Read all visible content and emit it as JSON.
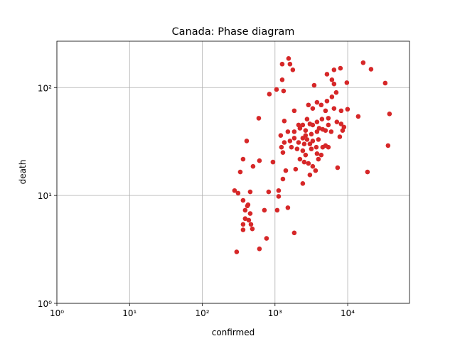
{
  "chart_data": {
    "type": "scatter",
    "title": "Canada: Phase diagram",
    "xlabel": "confirmed",
    "ylabel": "death",
    "x": [
      1538,
      1256,
      1607,
      1758,
      1256,
      837,
      1049,
      1313,
      3459,
      5188,
      6486,
      7943,
      9727,
      16330,
      20940,
      32810,
      6067,
      6486,
      6950,
      6067,
      5188,
      4325,
      3784,
      2884,
      3304,
      4955,
      6486,
      8128,
      9954,
      13960,
      37580,
      5420,
      4426,
      3784,
      3020,
      2410,
      2109,
      2761,
      1841,
      1343,
      1199,
      1503,
      1841,
      2203,
      2636,
      3304,
      4046,
      4955,
      5420,
      7096,
      8128,
      8892,
      8511,
      7780,
      5929,
      4529,
      3784,
      3162,
      2636,
      2410,
      2761,
      3304,
      3954,
      4955,
      5420,
      4529,
      3698,
      3020,
      2523,
      2109,
      1841,
      1607,
      1343,
      1227,
      1285,
      1683,
      2014,
      2410,
      3162,
      3784,
      4325,
      2636,
      2203,
      2523,
      2884,
      3304,
      3954,
      3020,
      3614,
      2410,
      1923,
      1406,
      1285,
      1122,
      1122,
      7261,
      18710,
      35890,
      598,
      408,
      364,
      333,
      499,
      611,
      937,
      278,
      311,
      364,
      417,
      426,
      389,
      456,
      436,
      389,
      467,
      488,
      364,
      818,
      715,
      1072,
      1503,
      1841,
      765,
      611,
      297,
      364,
      456
    ],
    "values": [
      186,
      165,
      165,
      146,
      118,
      87,
      96,
      93,
      105,
      133,
      146,
      151,
      111,
      170,
      148,
      110,
      118,
      108,
      90,
      82,
      75,
      69,
      73,
      69,
      64,
      61,
      64,
      61,
      63,
      54,
      57,
      52,
      51,
      48,
      46,
      45,
      45,
      51,
      61,
      49,
      36,
      39,
      39,
      42,
      40,
      45,
      42,
      40,
      45,
      48,
      46,
      43,
      40,
      35,
      39,
      41,
      39,
      37,
      36,
      34,
      33,
      32,
      33,
      29,
      28,
      28,
      28,
      30,
      30,
      31,
      34,
      32,
      31,
      28,
      25,
      28,
      27,
      26,
      27,
      24.4,
      23.7,
      23.7,
      21.7,
      20.4,
      19.8,
      18.6,
      21.7,
      15.5,
      17,
      12.9,
      17.5,
      17,
      14.2,
      11.1,
      9.8,
      18.1,
      16.5,
      29,
      52,
      32,
      21.7,
      16.5,
      18.6,
      21,
      20.4,
      11.1,
      10.5,
      9.0,
      8.0,
      8.2,
      7.3,
      6.8,
      5.9,
      6.1,
      5.4,
      4.9,
      5.4,
      10.8,
      7.3,
      7.3,
      7.7,
      4.5,
      4.0,
      3.2,
      3.0,
      4.8,
      10.8
    ],
    "color": "#d62728",
    "xscale": "log",
    "yscale": "log",
    "xlim": [
      1,
      70800
    ],
    "ylim": [
      1,
      269
    ],
    "xticks": [
      {
        "value": 1,
        "label": "10⁰"
      },
      {
        "value": 10,
        "label": "10¹"
      },
      {
        "value": 100,
        "label": "10²"
      },
      {
        "value": 1000,
        "label": "10³"
      },
      {
        "value": 10000,
        "label": "10⁴"
      }
    ],
    "yticks": [
      {
        "value": 1,
        "label": "10⁰"
      },
      {
        "value": 10,
        "label": "10¹"
      },
      {
        "value": 100,
        "label": "10²"
      }
    ],
    "grid": true
  }
}
